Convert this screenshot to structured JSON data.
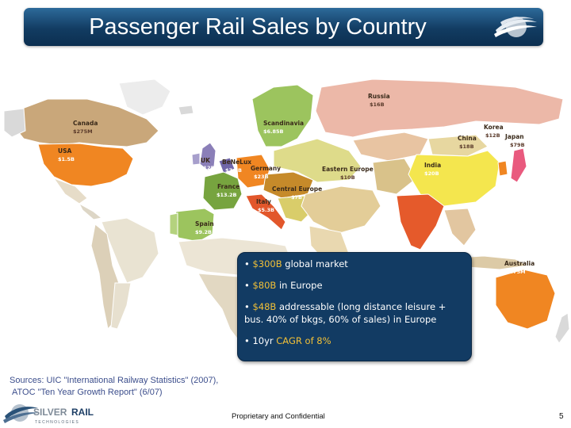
{
  "slide": {
    "title": "Passenger Rail Sales by Country",
    "page_number": "5",
    "footer": "Proprietary and Confidential",
    "sources_line1": "Sources: UIC \"International Railway Statistics\" (2007),",
    "sources_line2": "ATOC \"Ten Year Growth Report\" (6/07)"
  },
  "logo": {
    "word_silver": "SILVER",
    "word_rail": "RAIL",
    "word_tech": "T E C H N O L O G I E S"
  },
  "map": {
    "countries": [
      {
        "id": "canada",
        "name": "Canada",
        "value": "$275M"
      },
      {
        "id": "usa",
        "name": "USA",
        "value": "$1.5B"
      },
      {
        "id": "uk",
        "name": "UK",
        "value": "$12B"
      },
      {
        "id": "benelux",
        "name": "BeNeLux",
        "value": "$7.1B"
      },
      {
        "id": "france",
        "name": "France",
        "value": "$13.2B"
      },
      {
        "id": "spain",
        "name": "Spain",
        "value": "$9.2B"
      },
      {
        "id": "germany",
        "name": "Germany",
        "value": "$23B"
      },
      {
        "id": "central-europe",
        "name": "Central Europe",
        "value": "$7B"
      },
      {
        "id": "italy",
        "name": "Italy",
        "value": "$5.3B"
      },
      {
        "id": "scandinavia",
        "name": "Scandinavia",
        "value": "$6.85B"
      },
      {
        "id": "eastern-europe",
        "name": "Eastern Europe",
        "value": "$10B"
      },
      {
        "id": "russia",
        "name": "Russia",
        "value": "$16B"
      },
      {
        "id": "china",
        "name": "China",
        "value": "$18B"
      },
      {
        "id": "korea",
        "name": "Korea",
        "value": "$12B"
      },
      {
        "id": "japan",
        "name": "Japan",
        "value": "$79B"
      },
      {
        "id": "india",
        "name": "India",
        "value": "$20B"
      },
      {
        "id": "australia",
        "name": "Australia",
        "value": "$675M"
      }
    ]
  },
  "bullets": [
    {
      "marker": "•",
      "highlight": "$300B",
      "text": " global market"
    },
    {
      "marker": "•",
      "highlight": "$80B",
      "text": " in Europe"
    },
    {
      "marker": "•",
      "highlight": "$48B",
      "text": " addressable (long distance leisure + bus. 40% of bkgs, 60% of sales) in Europe"
    },
    {
      "marker": "•",
      "prefix": "10yr ",
      "highlight": "CAGR of 8%",
      "text": ""
    }
  ],
  "colors": {
    "title_bar": "#123c62",
    "bullet_box": "#123b63",
    "highlight": "#f2c037",
    "sources_text": "#3c4e8c"
  }
}
